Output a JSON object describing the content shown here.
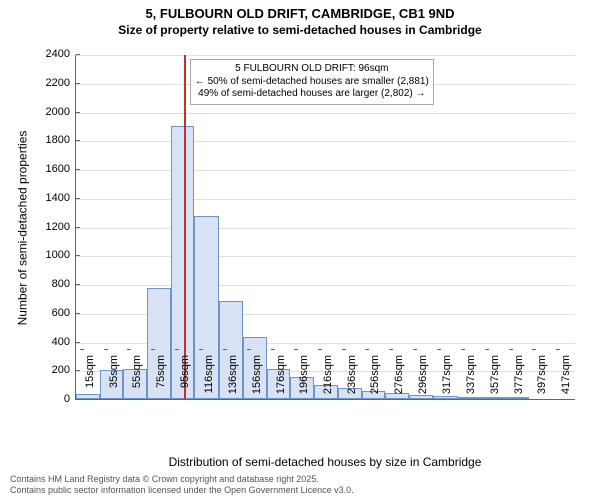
{
  "title": {
    "line1": "5, FULBOURN OLD DRIFT, CAMBRIDGE, CB1 9ND",
    "line2": "Size of property relative to semi-detached houses in Cambridge"
  },
  "chart": {
    "type": "histogram",
    "ylabel": "Number of semi-detached properties",
    "xlabel": "Distribution of semi-detached houses by size in Cambridge",
    "ylim": [
      0,
      2400
    ],
    "ytick_step": 200,
    "background_color": "#ffffff",
    "grid_color": "#e0e0e0",
    "axis_color": "#666666",
    "label_fontsize": 12,
    "tick_fontsize": 11,
    "bar_fill": "#d7e3f4",
    "bar_stroke": "#6d93c9",
    "bar_stroke_width": 1,
    "x_categories": [
      "15sqm",
      "35sqm",
      "55sqm",
      "75sqm",
      "95sqm",
      "116sqm",
      "136sqm",
      "156sqm",
      "176sqm",
      "196sqm",
      "216sqm",
      "236sqm",
      "256sqm",
      "276sqm",
      "296sqm",
      "317sqm",
      "337sqm",
      "357sqm",
      "377sqm",
      "397sqm",
      "417sqm"
    ],
    "x_bin_edges": [
      5,
      25,
      45,
      65,
      85,
      105,
      126,
      146,
      166,
      186,
      206,
      226,
      246,
      266,
      286,
      306,
      327,
      347,
      367,
      387,
      407,
      427
    ],
    "values": [
      35,
      200,
      210,
      770,
      1900,
      1270,
      680,
      430,
      210,
      150,
      100,
      75,
      55,
      45,
      30,
      20,
      10,
      5,
      1,
      0,
      0
    ],
    "highlight": {
      "value_sqm": 96,
      "line_color": "#c23030",
      "line_width": 2
    },
    "annotation": {
      "lines": [
        "5 FULBOURN OLD DRIFT: 96sqm",
        "← 50% of semi-detached houses are smaller (2,881)",
        "49% of semi-detached houses are larger (2,802) →"
      ],
      "border_color": "#a8a8a8",
      "bg_color": "#ffffff",
      "fontsize": 10
    }
  },
  "footer": {
    "line1": "Contains HM Land Registry data © Crown copyright and database right 2025.",
    "line2": "Contains public sector information licensed under the Open Government Licence v3.0."
  }
}
